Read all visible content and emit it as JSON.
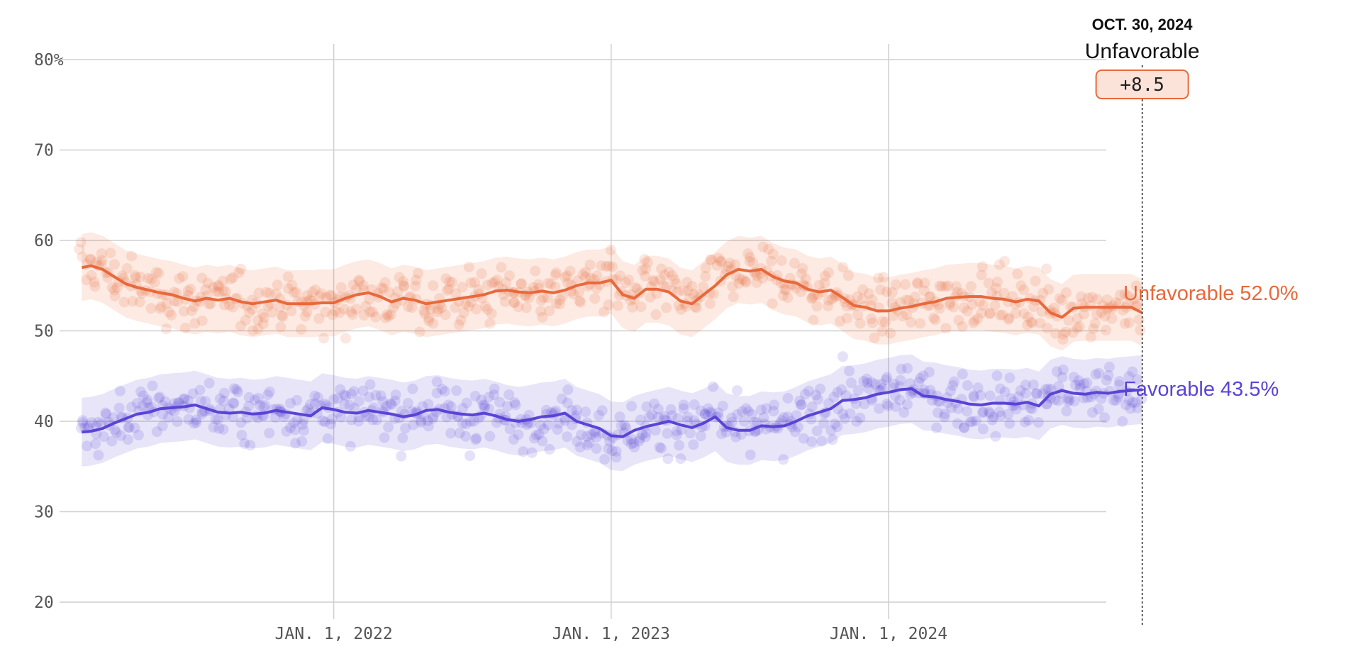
{
  "chart_data": {
    "type": "line",
    "title": "",
    "xlabel": "",
    "ylabel": "",
    "ylim": [
      20,
      80
    ],
    "y_ticks": [
      {
        "value": 80,
        "label": "80%"
      },
      {
        "value": 70,
        "label": "70"
      },
      {
        "value": 60,
        "label": "60"
      },
      {
        "value": 50,
        "label": "50"
      },
      {
        "value": 40,
        "label": "40"
      },
      {
        "value": 30,
        "label": "30"
      },
      {
        "value": 20,
        "label": "20"
      }
    ],
    "x_range_months": [
      0,
      46.5
    ],
    "x_ticks": [
      {
        "month": 11,
        "label": "JAN. 1, 2022"
      },
      {
        "month": 23,
        "label": "JAN. 1, 2023"
      },
      {
        "month": 35,
        "label": "JAN. 1, 2024"
      }
    ],
    "x_note": "x values are months since Feb 1, 2021",
    "cursor": {
      "month": 45.97,
      "date": "OCT. 30, 2024",
      "leader": "Unfavorable",
      "margin": "+8.5"
    },
    "series": [
      {
        "name": "Unfavorable",
        "color": "#e8693b",
        "end_label": "Unfavorable 52.0%",
        "band_halfwidth": 3.7,
        "x": [
          0.1,
          0.5,
          1,
          1.5,
          2,
          2.5,
          3,
          3.5,
          4,
          4.5,
          5,
          5.5,
          6,
          6.5,
          7,
          7.5,
          8,
          8.5,
          9,
          9.5,
          10,
          10.5,
          11,
          11.5,
          12,
          12.5,
          13,
          13.5,
          14,
          14.5,
          15,
          15.5,
          16,
          16.5,
          17,
          17.5,
          18,
          18.5,
          19,
          19.5,
          20,
          20.5,
          21,
          21.5,
          22,
          22.5,
          23,
          23.5,
          24,
          24.5,
          25,
          25.5,
          26,
          26.5,
          27,
          27.5,
          28,
          28.5,
          29,
          29.5,
          30,
          30.5,
          31,
          31.5,
          32,
          32.5,
          33,
          33.5,
          34,
          34.5,
          35,
          35.5,
          36,
          36.5,
          37,
          37.5,
          38,
          38.5,
          39,
          39.5,
          40,
          40.5,
          41,
          41.5,
          42,
          42.5,
          43,
          43.5,
          44,
          44.5,
          45,
          45.5,
          45.97
        ],
        "values": [
          57.0,
          57.2,
          56.8,
          56.0,
          55.2,
          54.8,
          54.5,
          54.2,
          54.0,
          53.6,
          53.3,
          53.6,
          53.4,
          53.6,
          53.2,
          53.0,
          53.2,
          53.4,
          53.0,
          53.0,
          53.0,
          53.1,
          53.1,
          53.6,
          54.0,
          54.2,
          53.8,
          53.2,
          53.6,
          53.4,
          53.0,
          53.2,
          53.4,
          53.6,
          53.8,
          54.0,
          54.4,
          54.5,
          54.3,
          54.2,
          54.4,
          54.2,
          54.5,
          55.0,
          55.3,
          55.3,
          55.6,
          54.0,
          53.6,
          54.6,
          54.6,
          54.3,
          53.3,
          53.0,
          54.0,
          55.0,
          56.2,
          56.8,
          56.6,
          56.8,
          56.0,
          55.5,
          55.3,
          54.6,
          54.3,
          54.5,
          53.7,
          52.8,
          52.6,
          52.2,
          52.2,
          52.5,
          52.7,
          53.0,
          53.2,
          53.6,
          53.7,
          53.8,
          53.8,
          53.6,
          53.5,
          53.2,
          53.5,
          53.3,
          52.0,
          51.5,
          52.5,
          52.6,
          52.6,
          52.6,
          52.6,
          52.6,
          52.0
        ]
      },
      {
        "name": "Favorable",
        "color": "#5a44d6",
        "end_label": "Favorable 43.5%",
        "band_halfwidth": 3.8,
        "x": [
          0.1,
          0.5,
          1,
          1.5,
          2,
          2.5,
          3,
          3.5,
          4,
          4.5,
          5,
          5.5,
          6,
          6.5,
          7,
          7.5,
          8,
          8.5,
          9,
          9.5,
          10,
          10.5,
          11,
          11.5,
          12,
          12.5,
          13,
          13.5,
          14,
          14.5,
          15,
          15.5,
          16,
          16.5,
          17,
          17.5,
          18,
          18.5,
          19,
          19.5,
          20,
          20.5,
          21,
          21.5,
          22,
          22.5,
          23,
          23.5,
          24,
          24.5,
          25,
          25.5,
          26,
          26.5,
          27,
          27.5,
          28,
          28.5,
          29,
          29.5,
          30,
          30.5,
          31,
          31.5,
          32,
          32.5,
          33,
          33.5,
          34,
          34.5,
          35,
          35.5,
          36,
          36.5,
          37,
          37.5,
          38,
          38.5,
          39,
          39.5,
          40,
          40.5,
          41,
          41.5,
          42,
          42.5,
          43,
          43.5,
          44,
          44.5,
          45,
          45.5,
          45.97
        ],
        "values": [
          38.8,
          38.9,
          39.2,
          39.8,
          40.3,
          40.8,
          41.0,
          41.4,
          41.5,
          41.6,
          41.8,
          41.4,
          41.0,
          40.9,
          41.0,
          40.8,
          40.9,
          41.2,
          41.0,
          40.8,
          40.6,
          41.5,
          41.3,
          41.0,
          40.9,
          41.2,
          41.0,
          40.8,
          40.5,
          40.7,
          41.2,
          41.3,
          41.0,
          40.8,
          40.7,
          40.9,
          40.6,
          40.2,
          40.0,
          40.2,
          40.5,
          40.6,
          40.9,
          40.0,
          39.6,
          39.2,
          38.4,
          38.3,
          39.0,
          39.4,
          39.7,
          40.0,
          39.6,
          39.3,
          39.8,
          40.5,
          39.3,
          39.0,
          39.0,
          39.5,
          39.4,
          39.5,
          40.0,
          40.6,
          41.0,
          41.4,
          42.3,
          42.4,
          42.6,
          43.0,
          43.2,
          43.5,
          43.6,
          42.8,
          42.7,
          42.4,
          42.2,
          41.9,
          41.8,
          42.0,
          42.0,
          41.9,
          42.1,
          41.7,
          43.0,
          43.4,
          43.1,
          43.0,
          43.2,
          43.1,
          43.3,
          43.4,
          43.5
        ]
      }
    ]
  }
}
